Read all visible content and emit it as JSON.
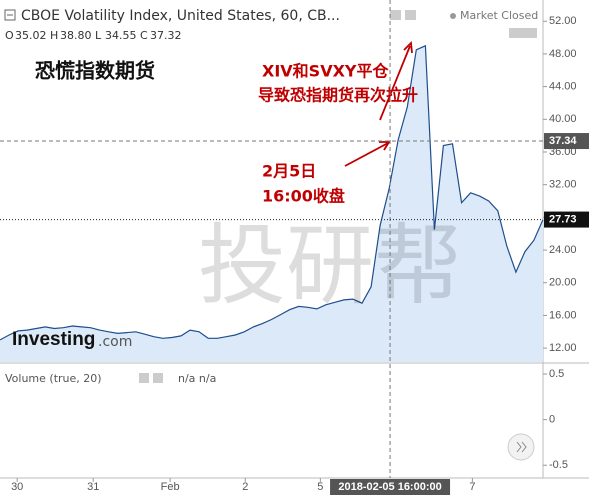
{
  "header": {
    "title": "CBOE Volatility Index, United States, 60, CB...",
    "status": "Market Closed",
    "ohlc": [
      {
        "label": "O",
        "value": "35.02"
      },
      {
        "label": "H",
        "value": "38.80"
      },
      {
        "label": "L",
        "value": "34.55"
      },
      {
        "label": "C",
        "value": "37.32"
      }
    ]
  },
  "logo": {
    "brand": "Investing",
    "suffix": ".com"
  },
  "watermark": "投研帮",
  "chart_data": {
    "type": "area",
    "title": "恐慌指数期货",
    "color": "#1f4e8c",
    "fill": "#dce9f8",
    "annotations": [
      "XIV和SVXY平仓",
      "导致恐指期货再次拉升",
      "2月5日",
      "16:00收盘"
    ],
    "values": [
      13.0,
      13.6,
      14.1,
      14.2,
      14.4,
      14.6,
      14.4,
      14.5,
      14.7,
      14.6,
      14.5,
      14.2,
      14.0,
      13.8,
      13.9,
      14.0,
      13.7,
      13.4,
      13.2,
      13.3,
      13.5,
      14.2,
      14.0,
      13.2,
      13.2,
      13.4,
      13.6,
      14.0,
      14.6,
      15.0,
      15.5,
      16.1,
      16.7,
      17.1,
      17.0,
      16.8,
      17.3,
      17.6,
      17.9,
      18.0,
      17.5,
      19.5,
      27.0,
      31.5,
      37.5,
      41.5,
      48.5,
      49.0,
      26.5,
      36.8,
      37.0,
      29.8,
      31.0,
      30.6,
      30.0,
      28.8,
      24.5,
      21.3,
      23.8,
      25.2,
      27.73
    ],
    "xlim": [
      0,
      60
    ],
    "xticks": [
      {
        "value": 1.9,
        "label": "30"
      },
      {
        "value": 10.3,
        "label": "31"
      },
      {
        "value": 18.8,
        "label": "Feb"
      },
      {
        "value": 27.1,
        "label": "2"
      },
      {
        "value": 35.4,
        "label": "5"
      },
      {
        "value": 52.2,
        "label": "7"
      }
    ],
    "ylim": [
      10.3,
      54.6
    ],
    "yticks": [
      {
        "value": 12,
        "label": "12.00"
      },
      {
        "value": 16,
        "label": "16.00"
      },
      {
        "value": 20,
        "label": "20.00"
      },
      {
        "value": 24,
        "label": "24.00"
      },
      {
        "value": 28,
        "label": "28.00"
      },
      {
        "value": 32,
        "label": "32.00"
      },
      {
        "value": 36,
        "label": "36.00"
      },
      {
        "value": 40,
        "label": "40.00"
      },
      {
        "value": 44,
        "label": "44.00"
      },
      {
        "value": 48,
        "label": "48.00"
      },
      {
        "value": 52,
        "label": "52.00"
      }
    ],
    "crosshair": {
      "x": 43.1,
      "x_label": "2018-02-05 16:00:00",
      "y": 37.34,
      "y_label": "37.34"
    },
    "last_value": {
      "value": 27.73,
      "label": "27.73"
    }
  },
  "volume_pane": {
    "title": "Volume (true, 20)",
    "readout": "n/a n/a",
    "ylim": [
      -0.64,
      0.61
    ],
    "yticks": [
      0.5,
      0,
      -0.5
    ]
  }
}
